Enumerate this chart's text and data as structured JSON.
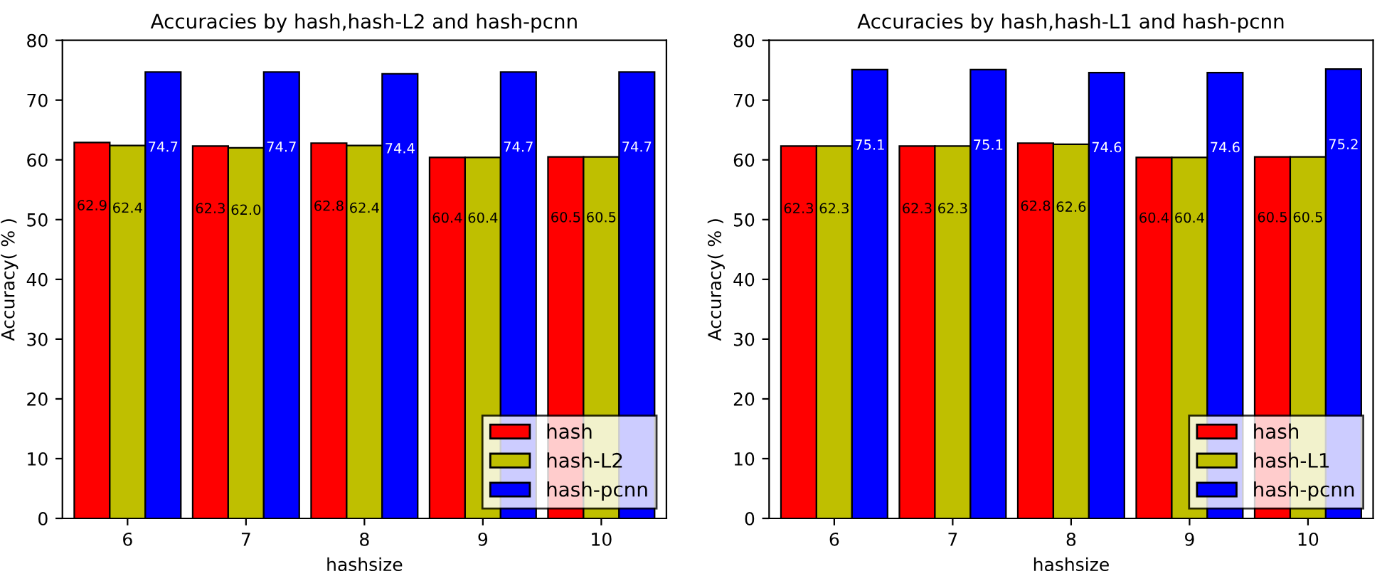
{
  "chart_data": [
    {
      "type": "bar",
      "title": "Accuracies by hash,hash-L2 and hash-pcnn",
      "xlabel": "hashsize",
      "ylabel": "Accuracy( % )",
      "categories": [
        "6",
        "7",
        "8",
        "9",
        "10"
      ],
      "ylim": [
        0,
        80
      ],
      "yticks": [
        0,
        10,
        20,
        30,
        40,
        50,
        60,
        70,
        80
      ],
      "legend": "bottom right",
      "grid": false,
      "series": [
        {
          "name": "hash",
          "color": "#ff0000",
          "values": [
            62.9,
            62.3,
            62.8,
            60.4,
            60.5
          ],
          "value_labels": [
            "62.9",
            "62.3",
            "62.8",
            "60.4",
            "60.5"
          ]
        },
        {
          "name": "hash-L2",
          "color": "#bfbf00",
          "values": [
            62.4,
            62.0,
            62.4,
            60.4,
            60.5
          ],
          "value_labels": [
            "62.4",
            "62.0",
            "62.4",
            "60.4",
            "60.5"
          ]
        },
        {
          "name": "hash-pcnn",
          "color": "#0000ff",
          "values": [
            74.7,
            74.7,
            74.4,
            74.7,
            74.7
          ],
          "value_labels": [
            "74.7",
            "74.7",
            "74.4",
            "74.7",
            "74.7"
          ]
        }
      ]
    },
    {
      "type": "bar",
      "title": "Accuracies by hash,hash-L1 and hash-pcnn",
      "xlabel": "hashsize",
      "ylabel": "Accuracy( % )",
      "categories": [
        "6",
        "7",
        "8",
        "9",
        "10"
      ],
      "ylim": [
        0,
        80
      ],
      "yticks": [
        0,
        10,
        20,
        30,
        40,
        50,
        60,
        70,
        80
      ],
      "legend": "bottom right",
      "grid": false,
      "series": [
        {
          "name": "hash",
          "color": "#ff0000",
          "values": [
            62.3,
            62.3,
            62.8,
            60.4,
            60.5
          ],
          "value_labels": [
            "62.3",
            "62.3",
            "62.8",
            "60.4",
            "60.5"
          ]
        },
        {
          "name": "hash-L1",
          "color": "#bfbf00",
          "values": [
            62.3,
            62.3,
            62.6,
            60.4,
            60.5
          ],
          "value_labels": [
            "62.3",
            "62.3",
            "62.6",
            "60.4",
            "60.5"
          ]
        },
        {
          "name": "hash-pcnn",
          "color": "#0000ff",
          "values": [
            75.1,
            75.1,
            74.6,
            74.6,
            75.2
          ],
          "value_labels": [
            "75.1",
            "75.1",
            "74.6",
            "74.6",
            "75.2"
          ]
        }
      ]
    }
  ]
}
